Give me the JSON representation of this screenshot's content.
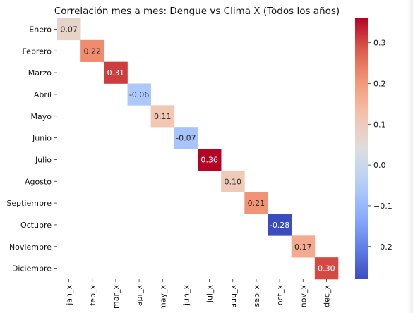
{
  "chart_data": {
    "type": "heatmap",
    "title": "Correlación mes a mes: Dengue vs Clima X (Todos los años)",
    "row_labels": [
      "Enero",
      "Febrero",
      "Marzo",
      "Abril",
      "Mayo",
      "Junio",
      "Julio",
      "Agosto",
      "Septiembre",
      "Octubre",
      "Noviembre",
      "Diciembre"
    ],
    "col_labels": [
      "jan_x",
      "feb_x",
      "mar_x",
      "apr_x",
      "may_x",
      "jun_x",
      "jul_x",
      "aug_x",
      "sep_x",
      "oct_x",
      "nov_x",
      "dec_x"
    ],
    "diagonal_values": [
      0.07,
      0.22,
      0.31,
      -0.06,
      0.11,
      -0.07,
      0.36,
      0.1,
      0.21,
      -0.28,
      0.17,
      0.3
    ],
    "annotations": [
      "0.07",
      "0.22",
      "0.31",
      "-0.06",
      "0.11",
      "-0.07",
      "0.36",
      "0.10",
      "0.21",
      "-0.28",
      "0.17",
      "0.30"
    ],
    "colormap": "coolwarm",
    "color_range": [
      -0.28,
      0.36
    ],
    "colorbar_ticks": [
      "0.3",
      "0.2",
      "0.1",
      "0.0",
      "−0.1",
      "−0.2"
    ],
    "colorbar_tick_values": [
      0.3,
      0.2,
      0.1,
      0.0,
      -0.1,
      -0.2
    ],
    "off_diagonal": "masked",
    "grid": false
  }
}
